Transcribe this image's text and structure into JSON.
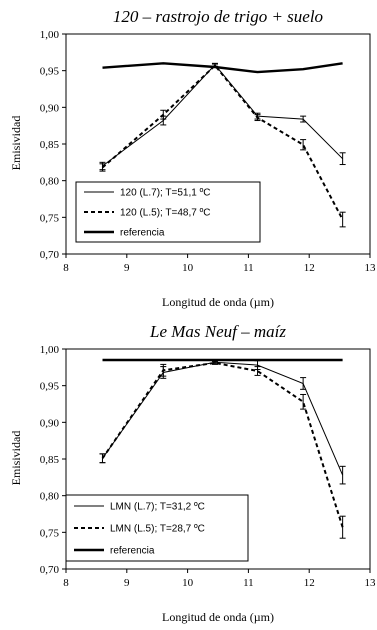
{
  "chart_data": [
    {
      "type": "line",
      "title": "120 – rastrojo de trigo + suelo",
      "xlabel": "Longitud de onda (µm)",
      "ylabel": "Emisividad",
      "xlim": [
        8,
        13
      ],
      "ylim": [
        0.7,
        1.0
      ],
      "xticks": [
        "8",
        "9",
        "10",
        "11",
        "12",
        "13"
      ],
      "yticks": [
        "0,70",
        "0,75",
        "0,80",
        "0,85",
        "0,90",
        "0,95",
        "1,00"
      ],
      "grid": false,
      "legend": "bottom-left",
      "series": [
        {
          "name": "120 (L.7); T=51,1 ºC",
          "style": "solid-thin",
          "x": [
            8.6,
            9.6,
            10.45,
            11.15,
            11.9,
            12.55
          ],
          "y": [
            0.82,
            0.882,
            0.958,
            0.888,
            0.884,
            0.83
          ],
          "err": [
            0.005,
            0.006,
            0.002,
            0.004,
            0.004,
            0.008
          ]
        },
        {
          "name": "120 (L.5); T=48,7 ºC",
          "style": "dashed",
          "x": [
            8.6,
            9.6,
            10.45,
            11.15,
            11.9,
            12.55
          ],
          "y": [
            0.818,
            0.89,
            0.957,
            0.886,
            0.849,
            0.747
          ],
          "err": [
            0.005,
            0.006,
            0.002,
            0.004,
            0.007,
            0.01
          ]
        },
        {
          "name": "referencia",
          "style": "solid-thick",
          "x": [
            8.6,
            9.6,
            10.45,
            11.15,
            11.9,
            12.55
          ],
          "y": [
            0.954,
            0.96,
            0.955,
            0.948,
            0.952,
            0.96
          ],
          "err": []
        }
      ]
    },
    {
      "type": "line",
      "title": "Le Mas Neuf – maíz",
      "xlabel": "Longitud de onda (µm)",
      "ylabel": "Emisividad",
      "xlim": [
        8,
        13
      ],
      "ylim": [
        0.7,
        1.0
      ],
      "xticks": [
        "8",
        "9",
        "10",
        "11",
        "12",
        "13"
      ],
      "yticks": [
        "0,70",
        "0,75",
        "0,80",
        "0,85",
        "0,90",
        "0,95",
        "1,00"
      ],
      "grid": false,
      "legend": "bottom-left",
      "series": [
        {
          "name": "LMN (L.7); T=31,2 ºC",
          "style": "solid-thin",
          "x": [
            8.6,
            9.6,
            10.45,
            11.15,
            11.9,
            12.55
          ],
          "y": [
            0.851,
            0.968,
            0.982,
            0.978,
            0.953,
            0.828
          ],
          "err": [
            0.006,
            0.008,
            0.002,
            0.006,
            0.008,
            0.012
          ]
        },
        {
          "name": "LMN (L.5); T=28,7 ºC",
          "style": "dashed",
          "x": [
            8.6,
            9.6,
            10.45,
            11.15,
            11.9,
            12.55
          ],
          "y": [
            0.851,
            0.971,
            0.981,
            0.97,
            0.928,
            0.757
          ],
          "err": [
            0.006,
            0.008,
            0.002,
            0.006,
            0.01,
            0.015
          ]
        },
        {
          "name": "referencia",
          "style": "solid-thick",
          "x": [
            8.6,
            12.55
          ],
          "y": [
            0.985,
            0.985
          ],
          "err": []
        }
      ]
    }
  ]
}
